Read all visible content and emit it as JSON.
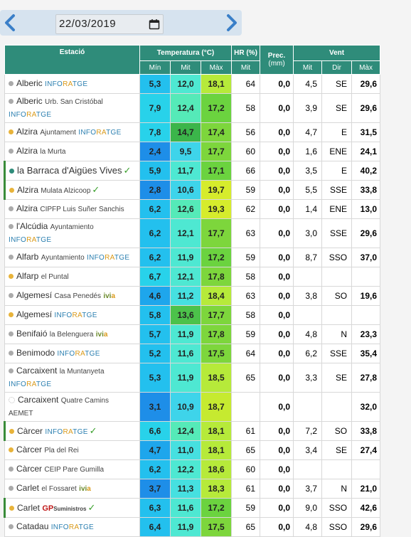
{
  "header": {
    "date": "22/03/2019",
    "prev_icon": "chevron-left-icon",
    "next_icon": "chevron-right-icon",
    "calendar_icon": "calendar-icon"
  },
  "table": {
    "headers": {
      "estacio": "Estació",
      "temperatura": "Temperatura (°C)",
      "hr": "HR (%)",
      "prec": "Prec.",
      "prec_unit": "(mm)",
      "vent": "Vent",
      "min": "Mín",
      "mit": "Mit",
      "max": "Màx",
      "hr_mit": "Mit",
      "vent_mit": "Mit",
      "vent_dir": "Dir",
      "vent_max": "Màx"
    },
    "rows": [
      {
        "name": "Alberic",
        "sub": "",
        "tag": "INFORATGE",
        "tagLine2": false,
        "dot": "#aaa",
        "check": false,
        "min": "5,3",
        "mit": "12,0",
        "max": "18,1",
        "hr": "64",
        "prec": "0,0",
        "vmit": "4,5",
        "vdir": "SE",
        "vmax": "29,6",
        "c": [
          "#23c0ee",
          "#4ee8d2",
          "#b6ea3a"
        ],
        "tall": false
      },
      {
        "name": "Alberic",
        "sub": "Urb. San Cristóbal",
        "tag": "INFORATGE",
        "tagLine2": true,
        "dot": "#aaa",
        "check": false,
        "min": "7,9",
        "mit": "12,4",
        "max": "17,2",
        "hr": "58",
        "prec": "0,0",
        "vmit": "3,9",
        "vdir": "SE",
        "vmax": "29,6",
        "c": [
          "#28d2ea",
          "#55eab8",
          "#6bd33f"
        ],
        "tall": true
      },
      {
        "name": "Alzira",
        "sub": "Ajuntament",
        "tag": "INFORATGE",
        "tagLine2": false,
        "dot": "#e8b33a",
        "check": false,
        "min": "7,8",
        "mit": "14,7",
        "max": "17,4",
        "hr": "56",
        "prec": "0,0",
        "vmit": "4,7",
        "vdir": "E",
        "vmax": "31,5",
        "c": [
          "#28d2ea",
          "#3bb54a",
          "#7dd63c"
        ],
        "tall": false
      },
      {
        "name": "Alzira",
        "sub": "la Murta",
        "tag": "",
        "tagLine2": false,
        "dot": "#aaa",
        "check": false,
        "min": "2,4",
        "mit": "9,5",
        "max": "17,7",
        "hr": "60",
        "prec": "0,0",
        "vmit": "1,6",
        "vdir": "ENE",
        "vmax": "24,1",
        "c": [
          "#1e8ee8",
          "#3ed4ea",
          "#7dd63c"
        ],
        "tall": false
      },
      {
        "name": "la Barraca d'Aigües Vives",
        "sub": "",
        "tag": "",
        "tagLine2": false,
        "dot": "#2f8c7a",
        "check": true,
        "min": "5,9",
        "mit": "11,7",
        "max": "17,1",
        "hr": "66",
        "prec": "0,0",
        "vmit": "3,5",
        "vdir": "E",
        "vmax": "40,2",
        "c": [
          "#23c0ee",
          "#4ee8d2",
          "#6bd33f"
        ],
        "tall": false,
        "hl": true,
        "big": true
      },
      {
        "name": "Alzira",
        "sub": "Mulata Alzicoop",
        "tag": "",
        "tagLine2": false,
        "dot": "#e8b33a",
        "check": true,
        "min": "2,8",
        "mit": "10,6",
        "max": "19,7",
        "hr": "59",
        "prec": "0,0",
        "vmit": "5,5",
        "vdir": "SSE",
        "vmax": "33,8",
        "c": [
          "#1e8ee8",
          "#3ed4ea",
          "#d6ec2c"
        ],
        "tall": false,
        "hl": true
      },
      {
        "name": "Alzira",
        "sub": "CIPFP Luis Suñer Sanchis",
        "tag": "",
        "tagLine2": false,
        "dot": "#aaa",
        "check": false,
        "min": "6,2",
        "mit": "12,6",
        "max": "19,3",
        "hr": "62",
        "prec": "0,0",
        "vmit": "1,4",
        "vdir": "ENE",
        "vmax": "13,0",
        "c": [
          "#23c0ee",
          "#55eab8",
          "#d6ec2c"
        ],
        "tall": false
      },
      {
        "name": "l'Alcúdia",
        "sub": "Ayuntamiento",
        "tag": "INFORATGE",
        "tagLine2": false,
        "dot": "#aaa",
        "check": false,
        "min": "6,2",
        "mit": "12,1",
        "max": "17,7",
        "hr": "63",
        "prec": "0,0",
        "vmit": "3,0",
        "vdir": "SSE",
        "vmax": "29,6",
        "c": [
          "#23c0ee",
          "#4ee8d2",
          "#7dd63c"
        ],
        "tall": false
      },
      {
        "name": "Alfarb",
        "sub": "Ayuntamiento",
        "tag": "INFORATGE",
        "tagLine2": false,
        "dot": "#aaa",
        "check": false,
        "min": "6,2",
        "mit": "11,9",
        "max": "17,2",
        "hr": "59",
        "prec": "0,0",
        "vmit": "8,7",
        "vdir": "SSO",
        "vmax": "37,0",
        "c": [
          "#23c0ee",
          "#4ee8d2",
          "#6bd33f"
        ],
        "tall": false
      },
      {
        "name": "Alfarp",
        "sub": "el Puntal",
        "tag": "",
        "tagLine2": false,
        "dot": "#e8b33a",
        "check": false,
        "min": "6,7",
        "mit": "12,1",
        "max": "17,8",
        "hr": "58",
        "prec": "0,0",
        "vmit": "",
        "vdir": "",
        "vmax": "",
        "c": [
          "#28d2ea",
          "#4ee8d2",
          "#7dd63c"
        ],
        "tall": false
      },
      {
        "name": "Algemesí",
        "sub": "Casa Penedés",
        "tag": "",
        "ivia": true,
        "tagLine2": false,
        "dot": "#aaa",
        "check": false,
        "min": "4,6",
        "mit": "11,2",
        "max": "18,4",
        "hr": "63",
        "prec": "0,0",
        "vmit": "3,8",
        "vdir": "SO",
        "vmax": "19,6",
        "c": [
          "#1ea6ec",
          "#46e0e0",
          "#b6ea3a"
        ],
        "tall": false
      },
      {
        "name": "Algemesí",
        "sub": "",
        "tag": "INFORATGE",
        "tagLine2": false,
        "dot": "#e8b33a",
        "check": false,
        "min": "5,8",
        "mit": "13,6",
        "max": "17,7",
        "hr": "58",
        "prec": "0,0",
        "vmit": "",
        "vdir": "",
        "vmax": "",
        "c": [
          "#23c0ee",
          "#4cc24a",
          "#7dd63c"
        ],
        "tall": false
      },
      {
        "name": "Benifaió",
        "sub": "la Belenguera",
        "tag": "",
        "ivia": true,
        "tagLine2": false,
        "dot": "#aaa",
        "check": false,
        "min": "5,7",
        "mit": "11,9",
        "max": "17,8",
        "hr": "59",
        "prec": "0,0",
        "vmit": "4,8",
        "vdir": "N",
        "vmax": "23,3",
        "c": [
          "#23c0ee",
          "#4ee8d2",
          "#7dd63c"
        ],
        "tall": false
      },
      {
        "name": "Benimodo",
        "sub": "",
        "tag": "INFORATGE",
        "tagLine2": false,
        "dot": "#aaa",
        "check": false,
        "min": "5,2",
        "mit": "11,6",
        "max": "17,5",
        "hr": "64",
        "prec": "0,0",
        "vmit": "6,2",
        "vdir": "SSE",
        "vmax": "35,4",
        "c": [
          "#23c0ee",
          "#4ee8d2",
          "#7dd63c"
        ],
        "tall": false
      },
      {
        "name": "Carcaixent",
        "sub": "la Muntanyeta",
        "tag": "INFORATGE",
        "tagLine2": true,
        "dot": "#aaa",
        "check": false,
        "min": "5,3",
        "mit": "11,9",
        "max": "18,5",
        "hr": "65",
        "prec": "0,0",
        "vmit": "3,3",
        "vdir": "SE",
        "vmax": "27,8",
        "c": [
          "#23c0ee",
          "#4ee8d2",
          "#b6ea3a"
        ],
        "tall": true
      },
      {
        "name": "Carcaixent",
        "sub": "Quatre Camins",
        "tag": "AEMET",
        "tagLine2": true,
        "aemet": true,
        "dot": "none",
        "check": false,
        "min": "3,1",
        "mit": "10,9",
        "max": "18,7",
        "hr": "",
        "prec": "0,0",
        "vmit": "",
        "vdir": "",
        "vmax": "32,0",
        "c": [
          "#1e8ee8",
          "#3ed4ea",
          "#c6ea30"
        ],
        "tall": true
      },
      {
        "name": "Càrcer",
        "sub": "",
        "tag": "INFORATGE",
        "tagLine2": false,
        "dot": "#e8b33a",
        "check": true,
        "min": "6,6",
        "mit": "12,4",
        "max": "18,1",
        "hr": "61",
        "prec": "0,0",
        "vmit": "7,2",
        "vdir": "SO",
        "vmax": "33,8",
        "c": [
          "#28d2ea",
          "#55eab8",
          "#b6ea3a"
        ],
        "tall": false,
        "hl": true
      },
      {
        "name": "Càrcer",
        "sub": "Pla del Rei",
        "tag": "",
        "tagLine2": false,
        "dot": "#e8b33a",
        "check": false,
        "min": "4,7",
        "mit": "11,0",
        "max": "18,1",
        "hr": "65",
        "prec": "0,0",
        "vmit": "3,4",
        "vdir": "SE",
        "vmax": "27,4",
        "c": [
          "#1ea6ec",
          "#46e0e0",
          "#b6ea3a"
        ],
        "tall": false
      },
      {
        "name": "Càrcer",
        "sub": "CEIP Pare Gumilla",
        "tag": "",
        "tagLine2": false,
        "dot": "#aaa",
        "check": false,
        "min": "6,2",
        "mit": "12,2",
        "max": "18,6",
        "hr": "60",
        "prec": "0,0",
        "vmit": "",
        "vdir": "",
        "vmax": "",
        "c": [
          "#23c0ee",
          "#4ee8d2",
          "#b6ea3a"
        ],
        "tall": false
      },
      {
        "name": "Carlet",
        "sub": "el Fossaret",
        "tag": "",
        "ivia": true,
        "tagLine2": false,
        "dot": "#aaa",
        "check": false,
        "min": "3,7",
        "mit": "11,3",
        "max": "18,3",
        "hr": "61",
        "prec": "0,0",
        "vmit": "3,7",
        "vdir": "N",
        "vmax": "21,0",
        "c": [
          "#1e8ee8",
          "#46e0e0",
          "#b6ea3a"
        ],
        "tall": false
      },
      {
        "name": "Carlet",
        "sub": "",
        "tag": "",
        "gp": true,
        "tagLine2": false,
        "dot": "#e8b33a",
        "check": true,
        "min": "6,3",
        "mit": "11,6",
        "max": "17,2",
        "hr": "59",
        "prec": "0,0",
        "vmit": "9,0",
        "vdir": "SSO",
        "vmax": "42,6",
        "c": [
          "#23c0ee",
          "#4ee8d2",
          "#6bd33f"
        ],
        "tall": false,
        "hl": true
      },
      {
        "name": "Catadau",
        "sub": "",
        "tag": "INFORATGE",
        "tagLine2": false,
        "dot": "#aaa",
        "check": false,
        "min": "6,4",
        "mit": "11,9",
        "max": "17,5",
        "hr": "65",
        "prec": "0,0",
        "vmit": "4,8",
        "vdir": "SSO",
        "vmax": "29,6",
        "c": [
          "#23c0ee",
          "#4ee8d2",
          "#7dd63c"
        ],
        "tall": false
      }
    ],
    "gp_text": "GP",
    "gp_small": "Suministros",
    "ivia_text": "ivi",
    "ivia_a": "a",
    "check_text": "✓"
  }
}
